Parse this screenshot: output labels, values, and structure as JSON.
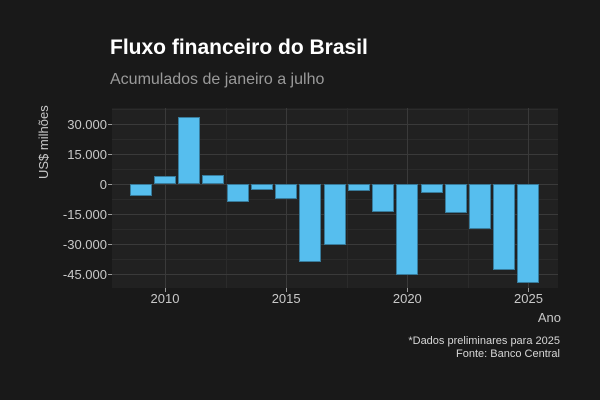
{
  "header": {
    "title": "Fluxo financeiro do Brasil",
    "subtitle": "Acumulados de janeiro a julho"
  },
  "chart_data": {
    "type": "bar",
    "title": "Fluxo financeiro do Brasil",
    "subtitle": "Acumulados de janeiro a julho",
    "xlabel": "Ano",
    "ylabel": "US$ milhões",
    "categories": [
      2009,
      2010,
      2011,
      2012,
      2013,
      2014,
      2015,
      2016,
      2017,
      2018,
      2019,
      2020,
      2021,
      2022,
      2023,
      2024,
      2025
    ],
    "values": [
      -5900,
      4100,
      33400,
      4300,
      -9200,
      -3100,
      -7500,
      -38900,
      -30500,
      -3500,
      -14200,
      -45400,
      -4600,
      -14700,
      -22500,
      -43000,
      -49400
    ],
    "ylim": [
      -52500,
      37500
    ],
    "grid": true,
    "legend": "none",
    "y_ticks": [
      {
        "value": 30000,
        "label": "30.000"
      },
      {
        "value": 15000,
        "label": "15.000"
      },
      {
        "value": 0,
        "label": "0"
      },
      {
        "value": -15000,
        "label": "-15.000"
      },
      {
        "value": -30000,
        "label": "-30.000"
      },
      {
        "value": -45000,
        "label": "-45.000"
      }
    ],
    "y_minor": [
      37500,
      22500,
      7500,
      -7500,
      -22500,
      -37500
    ],
    "x_ticks": [
      {
        "value": 2010,
        "label": "2010"
      },
      {
        "value": 2015,
        "label": "2015"
      },
      {
        "value": 2020,
        "label": "2020"
      },
      {
        "value": 2025,
        "label": "2025"
      }
    ],
    "x_minor": [
      2012.5,
      2017.5,
      2022.5
    ]
  },
  "footer": {
    "note": "*Dados preliminares para 2025",
    "source": "Fonte: Banco Central"
  },
  "colors": {
    "page_bg": "#191919",
    "panel_bg": "#212121",
    "bar": "#56BEEE",
    "grid_major": "#3a3a3a",
    "grid_minor": "#2b2b2b",
    "title_text": "#ffffff",
    "subtitle_text": "#9a9a9a",
    "axis_text": "#c8c8c8",
    "caption_text": "#d6d6d6"
  }
}
